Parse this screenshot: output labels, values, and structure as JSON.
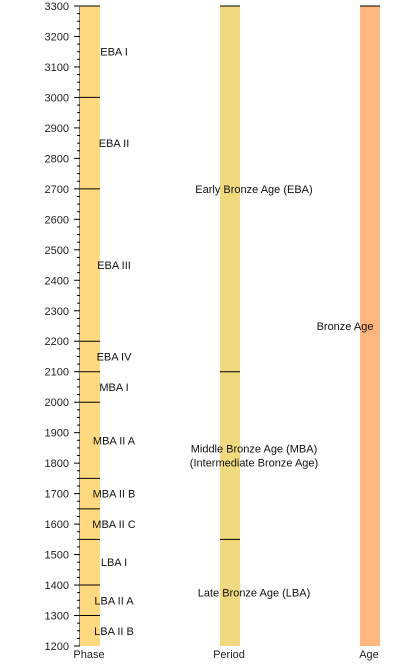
{
  "chart_data": {
    "type": "timeline",
    "y_axis": {
      "min": 1200,
      "max": 3300,
      "major_ticks": [
        3300,
        3200,
        3100,
        3000,
        2900,
        2800,
        2700,
        2600,
        2500,
        2400,
        2300,
        2200,
        2100,
        2000,
        1900,
        1800,
        1700,
        1600,
        1500,
        1400,
        1300,
        1200
      ],
      "minor_step": 25
    },
    "colors": {
      "phase": "#ffd97f",
      "period": "#f0d97f",
      "age": "#ffb67f",
      "line": "#000000",
      "text": "#222222"
    },
    "columns": [
      {
        "name": "Phase",
        "color_key": "phase",
        "segments": [
          {
            "label": "EBA I",
            "start": 3300,
            "end": 3000
          },
          {
            "label": "EBA II",
            "start": 3000,
            "end": 2700
          },
          {
            "label": "EBA III",
            "start": 2700,
            "end": 2200
          },
          {
            "label": "EBA IV",
            "start": 2200,
            "end": 2100
          },
          {
            "label": "MBA I",
            "start": 2100,
            "end": 2000
          },
          {
            "label": "MBA II A",
            "start": 2000,
            "end": 1750
          },
          {
            "label": "MBA II B",
            "start": 1750,
            "end": 1650
          },
          {
            "label": "MBA II C",
            "start": 1650,
            "end": 1550
          },
          {
            "label": "LBA I",
            "start": 1550,
            "end": 1400
          },
          {
            "label": "LBA II A",
            "start": 1400,
            "end": 1300
          },
          {
            "label": "LBA II B",
            "start": 1300,
            "end": 1200
          }
        ]
      },
      {
        "name": "Period",
        "color_key": "period",
        "segments": [
          {
            "label": "Early Bronze Age (EBA)",
            "start": 3300,
            "end": 2100
          },
          {
            "label": "Middle Bronze Age (MBA)\n(Intermediate Bronze Age)",
            "start": 2100,
            "end": 1550
          },
          {
            "label": "Late Bronze Age (LBA)",
            "start": 1550,
            "end": 1200
          }
        ]
      },
      {
        "name": "Age",
        "color_key": "age",
        "segments": [
          {
            "label": "Bronze Age",
            "start": 3300,
            "end": 1200
          }
        ]
      }
    ]
  }
}
